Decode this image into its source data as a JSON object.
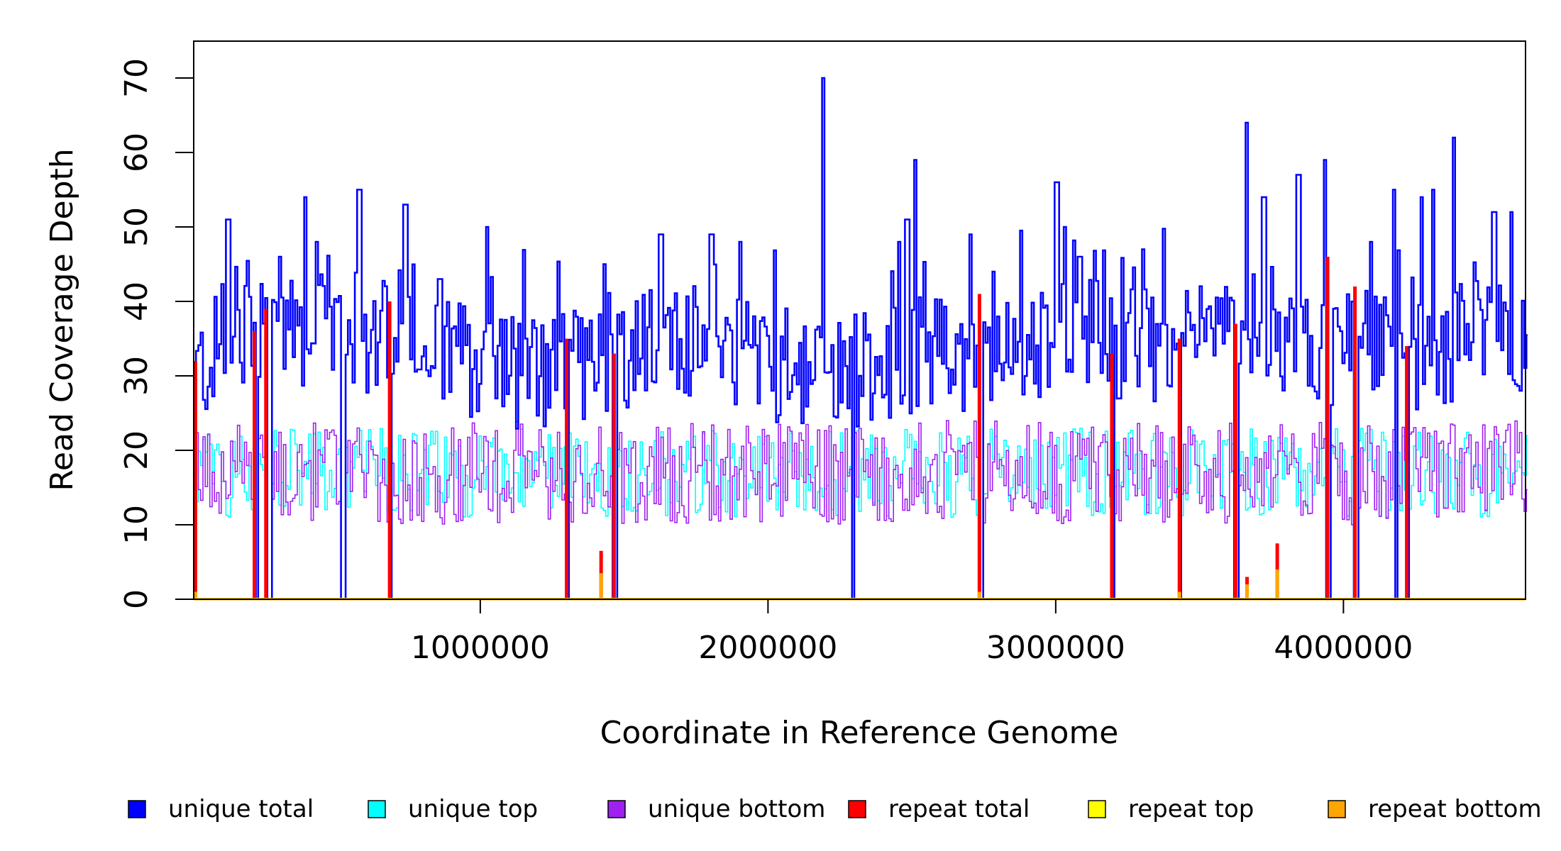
{
  "chart_data": {
    "type": "line",
    "title": "",
    "xlabel": "Coordinate in Reference Genome",
    "ylabel": "Read Coverage Depth",
    "xlim": [
      0,
      4640000
    ],
    "ylim": [
      0,
      75
    ],
    "x_ticks": [
      1000000,
      2000000,
      3000000,
      4000000
    ],
    "x_tick_labels": [
      "1000000",
      "2000000",
      "3000000",
      "4000000"
    ],
    "y_ticks": [
      0,
      10,
      20,
      30,
      40,
      50,
      60,
      70
    ],
    "y_tick_labels": [
      "0",
      "10",
      "20",
      "30",
      "40",
      "50",
      "60",
      "70"
    ],
    "grid": false,
    "legend_position": "bottom",
    "step_size": 8000,
    "colors": {
      "unique_total": "#0000ff",
      "unique_top": "#00ffff",
      "unique_bottom": "#a020f0",
      "repeat_total": "#ff0000",
      "repeat_top": "#ffff00",
      "repeat_bottom": "#ffa500"
    },
    "legend": [
      {
        "key": "unique_total",
        "label": "unique total",
        "color": "#0000ff"
      },
      {
        "key": "unique_top",
        "label": "unique top",
        "color": "#00ffff"
      },
      {
        "key": "unique_bottom",
        "label": "unique bottom",
        "color": "#a020f0"
      },
      {
        "key": "repeat_total",
        "label": "repeat total",
        "color": "#ff0000"
      },
      {
        "key": "repeat_top",
        "label": "repeat top",
        "color": "#ffff00"
      },
      {
        "key": "repeat_bottom",
        "label": "repeat bottom",
        "color": "#ffa500"
      }
    ],
    "unique_total_baseline": {
      "x": [
        0,
        200000,
        400000,
        600000,
        800000,
        1000000,
        1200000,
        1400000,
        1600000,
        1800000,
        2000000,
        2200000,
        2400000,
        2600000,
        2800000,
        3000000,
        3200000,
        3400000,
        3600000,
        3800000,
        4000000,
        4200000,
        4400000,
        4640000
      ],
      "y": [
        30,
        38,
        36,
        35,
        33,
        32,
        30,
        32,
        34,
        35,
        32,
        30,
        32,
        33,
        33,
        36,
        35,
        34,
        36,
        36,
        33,
        33,
        34,
        35
      ]
    },
    "unique_total_peaks": [
      {
        "x": 120000,
        "y": 51
      },
      {
        "x": 220000,
        "y": 46
      },
      {
        "x": 270000,
        "y": 44
      },
      {
        "x": 300000,
        "y": 46
      },
      {
        "x": 390000,
        "y": 54
      },
      {
        "x": 430000,
        "y": 48
      },
      {
        "x": 575000,
        "y": 55
      },
      {
        "x": 735000,
        "y": 53
      },
      {
        "x": 855000,
        "y": 43
      },
      {
        "x": 1020000,
        "y": 50
      },
      {
        "x": 1300000,
        "y": 45
      },
      {
        "x": 1430000,
        "y": 45
      },
      {
        "x": 1625000,
        "y": 49
      },
      {
        "x": 1800000,
        "y": 49
      },
      {
        "x": 1900000,
        "y": 48
      },
      {
        "x": 2190000,
        "y": 70
      },
      {
        "x": 2450000,
        "y": 48
      },
      {
        "x": 2480000,
        "y": 51
      },
      {
        "x": 2510000,
        "y": 59
      },
      {
        "x": 2700000,
        "y": 49
      },
      {
        "x": 2780000,
        "y": 44
      },
      {
        "x": 3000000,
        "y": 56
      },
      {
        "x": 3030000,
        "y": 50
      },
      {
        "x": 3080000,
        "y": 46
      },
      {
        "x": 3300000,
        "y": 47
      },
      {
        "x": 3620000,
        "y": 57
      },
      {
        "x": 3660000,
        "y": 64
      },
      {
        "x": 3720000,
        "y": 54
      },
      {
        "x": 3840000,
        "y": 57
      },
      {
        "x": 3930000,
        "y": 59
      },
      {
        "x": 4090000,
        "y": 48
      },
      {
        "x": 4170000,
        "y": 55
      },
      {
        "x": 4270000,
        "y": 54
      },
      {
        "x": 4310000,
        "y": 55
      },
      {
        "x": 4380000,
        "y": 62
      },
      {
        "x": 4520000,
        "y": 52
      },
      {
        "x": 4580000,
        "y": 52
      }
    ],
    "dropouts": [
      4000,
      220000,
      265000,
      520000,
      685000,
      1300000,
      1465000,
      2290000,
      2735000,
      3195000,
      3430000,
      3625000,
      3945000,
      4040000,
      4180000,
      4220000
    ],
    "repeat_peaks": [
      {
        "x": 10000,
        "total": 32,
        "bottom": 1
      },
      {
        "x": 215000,
        "total": 36,
        "bottom": 0
      },
      {
        "x": 255000,
        "total": 39,
        "bottom": 0
      },
      {
        "x": 685000,
        "total": 40,
        "bottom": 0
      },
      {
        "x": 1300000,
        "total": 35,
        "bottom": 0
      },
      {
        "x": 1420000,
        "total": 6.5,
        "bottom": 3.5
      },
      {
        "x": 1465000,
        "total": 33,
        "bottom": 0
      },
      {
        "x": 2735000,
        "total": 41,
        "bottom": 1
      },
      {
        "x": 3195000,
        "total": 33,
        "bottom": 0
      },
      {
        "x": 3430000,
        "total": 35,
        "bottom": 1
      },
      {
        "x": 3625000,
        "total": 37,
        "bottom": 0
      },
      {
        "x": 3665000,
        "total": 3,
        "bottom": 2
      },
      {
        "x": 3770000,
        "total": 7.5,
        "bottom": 4
      },
      {
        "x": 3945000,
        "total": 46,
        "bottom": 0
      },
      {
        "x": 4040000,
        "total": 42,
        "bottom": 0
      },
      {
        "x": 4220000,
        "total": 34,
        "bottom": 0
      }
    ],
    "unique_top_mean": 17,
    "unique_bottom_mean": 17
  }
}
